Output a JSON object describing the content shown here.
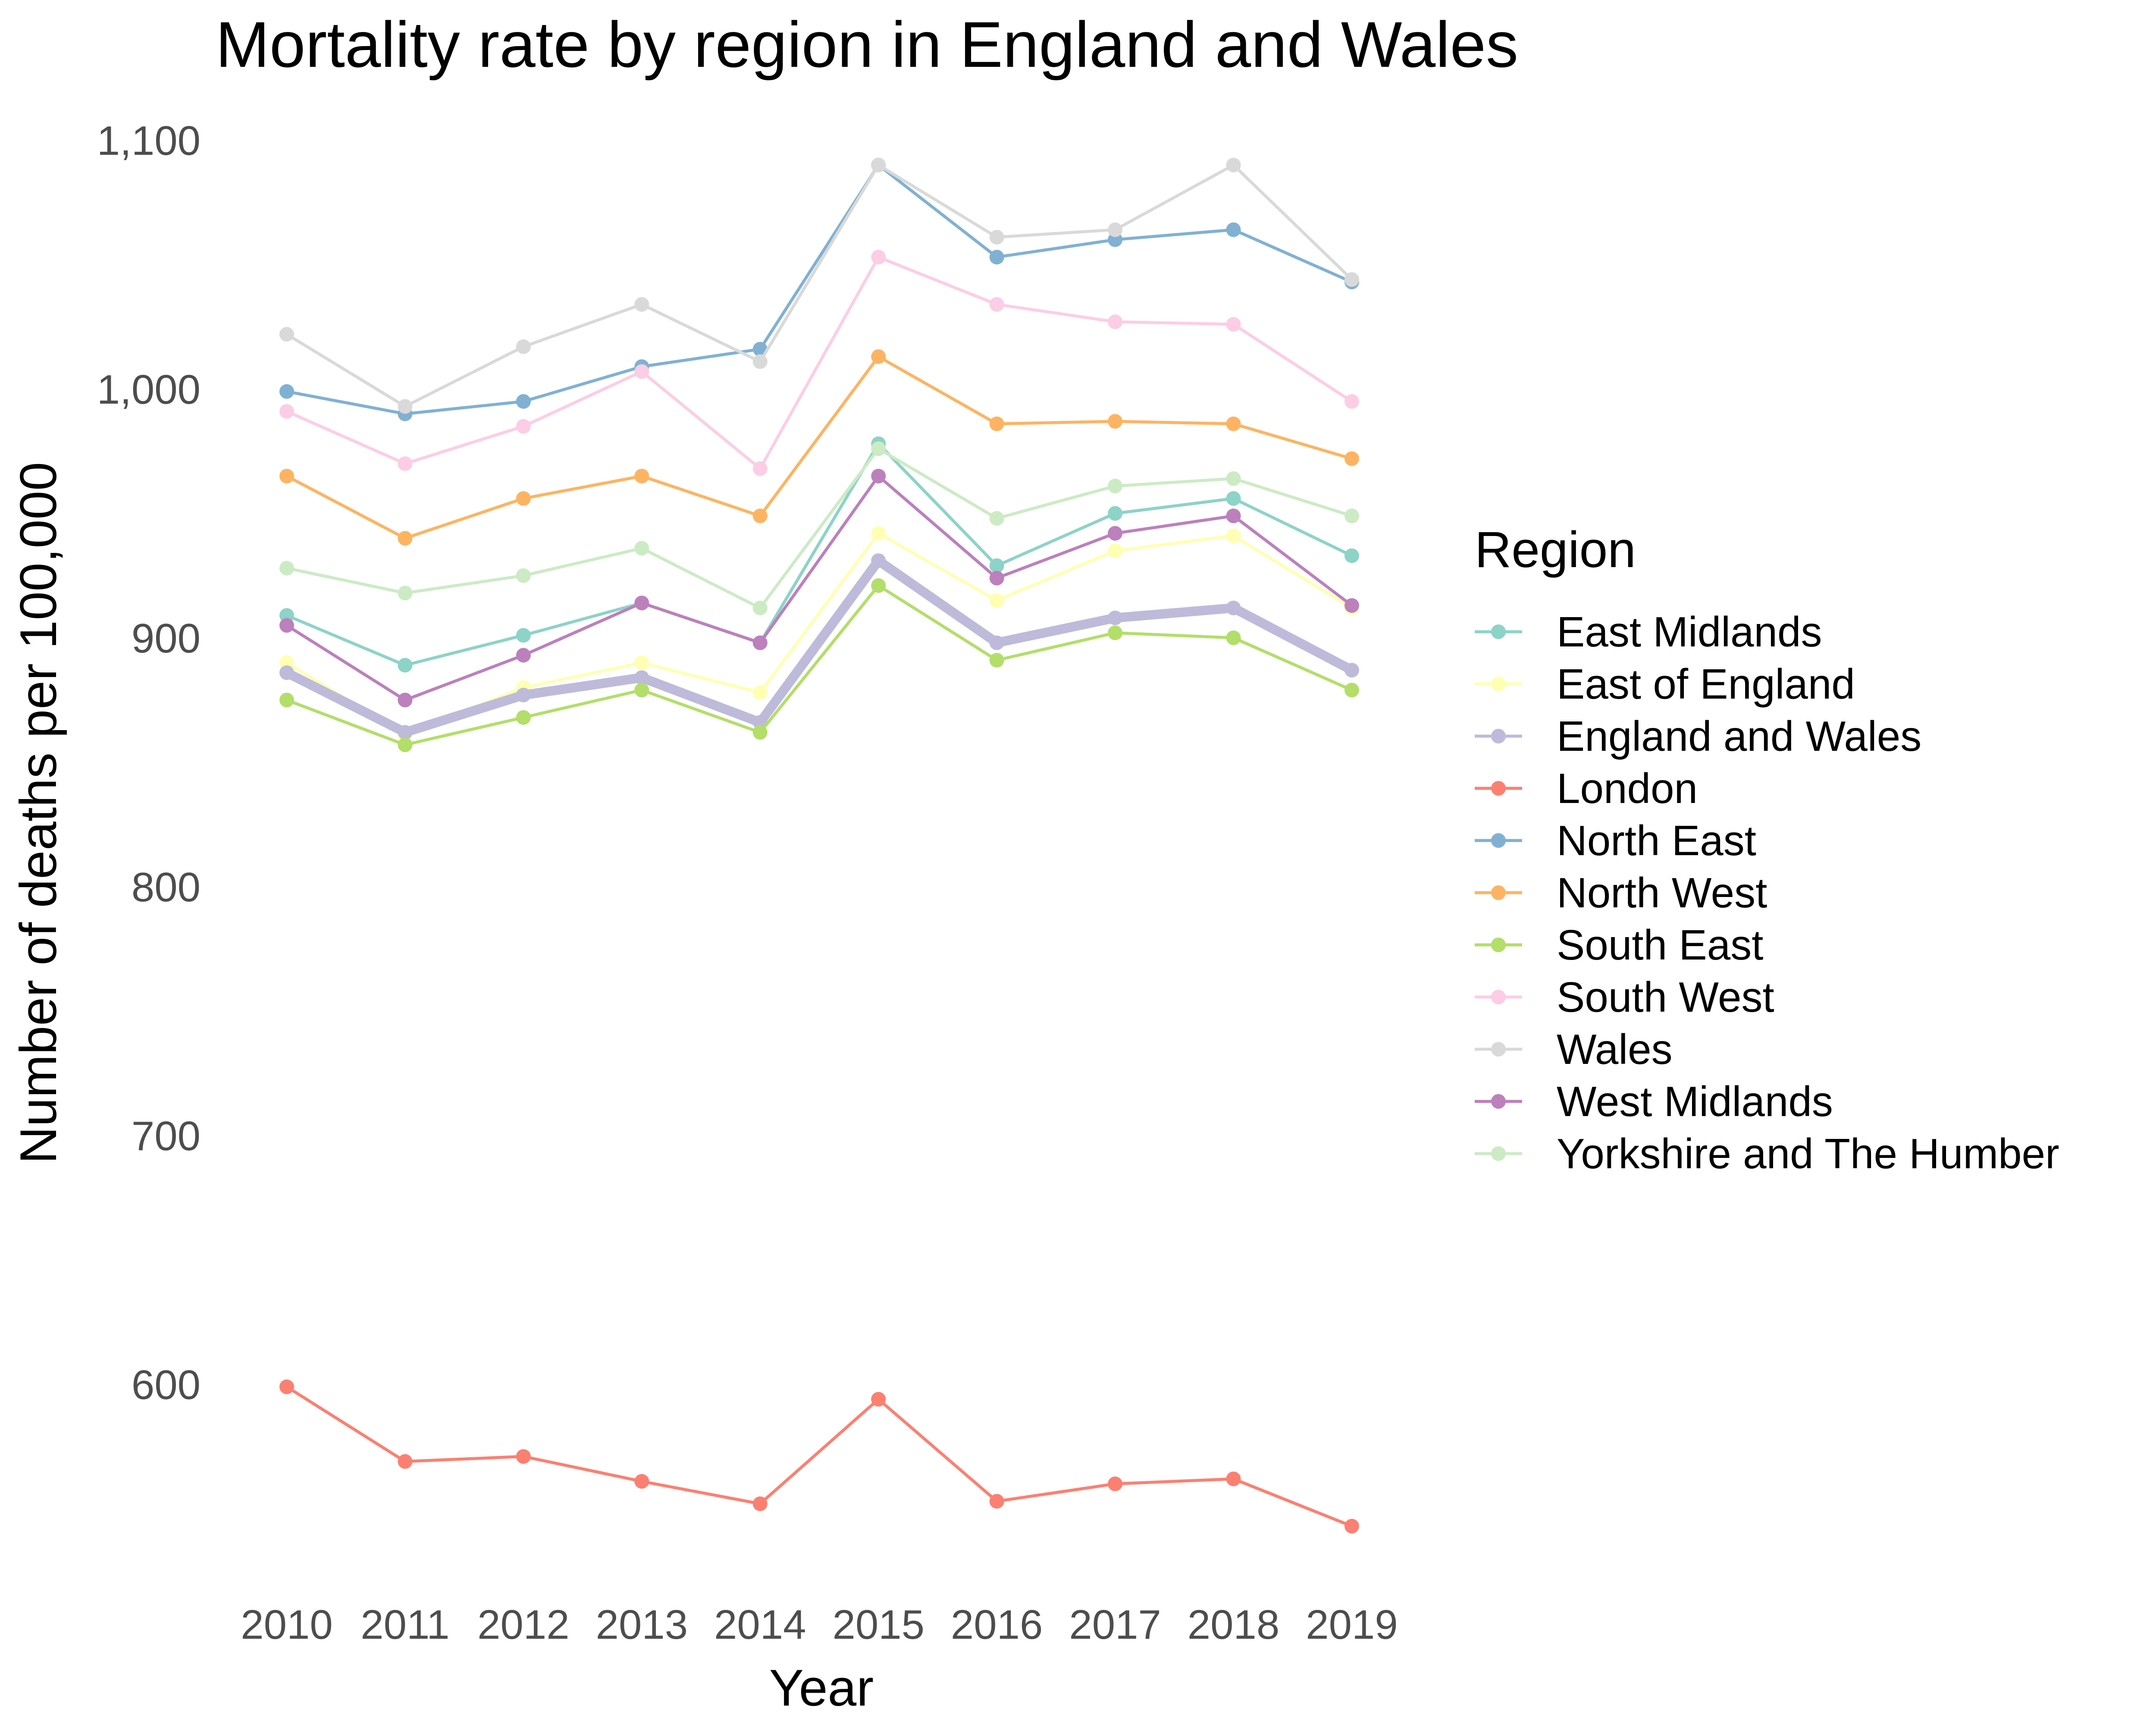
{
  "chart_data": {
    "type": "line",
    "title": "Mortality rate by region in England and Wales",
    "xlabel": "Year",
    "ylabel": "Number of deaths per 100,000",
    "x": [
      2010,
      2011,
      2012,
      2013,
      2014,
      2015,
      2016,
      2017,
      2018,
      2019
    ],
    "x_tick_labels": [
      "2010",
      "2011",
      "2012",
      "2013",
      "2014",
      "2015",
      "2016",
      "2017",
      "2018",
      "2019"
    ],
    "ylim": [
      520,
      1110
    ],
    "y_ticks": [
      600,
      700,
      800,
      900,
      1000,
      1100
    ],
    "y_tick_labels": [
      "600",
      "700",
      "800",
      "900",
      "1,000",
      "1,100"
    ],
    "grid": false,
    "legend_title": "Region",
    "legend_position": "right",
    "series": [
      {
        "name": "East Midlands",
        "color": "#8dd3c7",
        "values": [
          909,
          889,
          901,
          914,
          898,
          978,
          929,
          950,
          956,
          933
        ]
      },
      {
        "name": "East of England",
        "color": "#ffffb3",
        "values": [
          890,
          861,
          880,
          890,
          878,
          942,
          915,
          935,
          941,
          912
        ]
      },
      {
        "name": "England and Wales",
        "color": "#bebada",
        "emphasis": true,
        "values": [
          886,
          862,
          877,
          884,
          866,
          931,
          898,
          908,
          912,
          887
        ]
      },
      {
        "name": "London",
        "color": "#fb8072",
        "values": [
          599,
          569,
          571,
          561,
          552,
          594,
          553,
          560,
          562,
          543
        ]
      },
      {
        "name": "North East",
        "color": "#80b1d3",
        "values": [
          999,
          990,
          995,
          1009,
          1016,
          1090,
          1053,
          1060,
          1064,
          1043
        ]
      },
      {
        "name": "North West",
        "color": "#fdb462",
        "values": [
          965,
          940,
          956,
          965,
          949,
          1013,
          986,
          987,
          986,
          972
        ]
      },
      {
        "name": "South East",
        "color": "#b3de69",
        "values": [
          875,
          857,
          868,
          879,
          862,
          921,
          891,
          902,
          900,
          879
        ]
      },
      {
        "name": "South West",
        "color": "#fccde5",
        "values": [
          991,
          970,
          985,
          1007,
          968,
          1053,
          1034,
          1027,
          1026,
          995
        ]
      },
      {
        "name": "Wales",
        "color": "#d9d9d9",
        "values": [
          1022,
          993,
          1017,
          1034,
          1011,
          1090,
          1061,
          1064,
          1090,
          1044
        ]
      },
      {
        "name": "West Midlands",
        "color": "#bc80bd",
        "values": [
          905,
          875,
          893,
          914,
          898,
          965,
          924,
          942,
          949,
          913
        ]
      },
      {
        "name": "Yorkshire and The Humber",
        "color": "#ccebc5",
        "values": [
          928,
          918,
          925,
          936,
          912,
          976,
          948,
          961,
          964,
          949
        ]
      }
    ]
  }
}
